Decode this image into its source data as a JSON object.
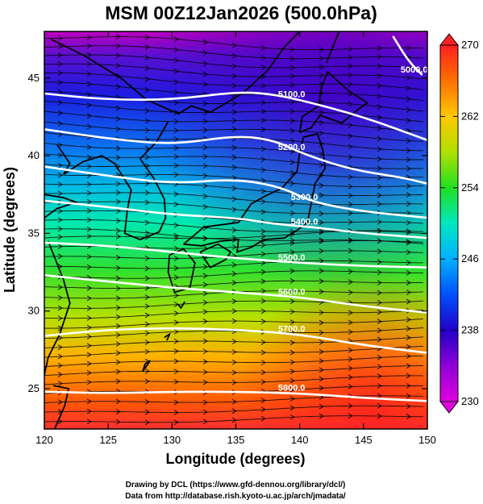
{
  "title": "MSM 00Z12Jan2026 (500.0hPa)",
  "credits": {
    "line1": "Drawing by DCL (https://www.gfd-dennou.org/library/dcl/)",
    "line2": "Data from http://database.rish.kyoto-u.ac.jp/arch/jmadata/"
  },
  "chart_data": {
    "type": "heatmap",
    "title": "MSM 00Z12Jan2026 (500.0hPa)",
    "xlabel": "Longitude (degrees)",
    "ylabel": "Latitude  (degrees)",
    "xlim": [
      120,
      150
    ],
    "ylim": [
      22.4,
      48
    ],
    "x_ticks": [
      120,
      125,
      130,
      135,
      140,
      145,
      150
    ],
    "y_ticks": [
      25,
      30,
      35,
      40,
      45
    ],
    "colorbar": {
      "min": 230,
      "max": 270,
      "ticks": [
        230,
        238,
        246,
        254,
        262,
        270
      ]
    },
    "contours": [
      {
        "label": "5000.0",
        "points": [
          [
            147.3,
            47.7
          ],
          [
            148.5,
            46.1
          ],
          [
            149.6,
            45.2
          ]
        ]
      },
      {
        "label": "5100.0",
        "points": [
          [
            120,
            44.0
          ],
          [
            125,
            43.6
          ],
          [
            130,
            43.6
          ],
          [
            135,
            44.1
          ],
          [
            137.5,
            44.0
          ],
          [
            140,
            43.6
          ],
          [
            145,
            42.5
          ],
          [
            150,
            41.0
          ]
        ]
      },
      {
        "label": "5200.0",
        "points": [
          [
            120,
            41.7
          ],
          [
            125,
            41.1
          ],
          [
            130,
            40.7
          ],
          [
            135,
            41.3
          ],
          [
            138,
            41.0
          ],
          [
            140,
            40.2
          ],
          [
            144,
            39.1
          ],
          [
            148,
            38.6
          ],
          [
            150,
            38.2
          ]
        ]
      },
      {
        "label": "5300.0",
        "points": [
          [
            120,
            39.3
          ],
          [
            125,
            38.7
          ],
          [
            130,
            38.2
          ],
          [
            135,
            38.5
          ],
          [
            138.5,
            38.0
          ],
          [
            141,
            37.0
          ],
          [
            145,
            36.4
          ],
          [
            150,
            36.0
          ]
        ]
      },
      {
        "label": "5400.0",
        "points": [
          [
            120,
            37.1
          ],
          [
            125,
            36.7
          ],
          [
            130,
            36.2
          ],
          [
            135,
            36.0
          ],
          [
            138,
            35.6
          ],
          [
            141,
            35.4
          ],
          [
            145,
            35.0
          ],
          [
            150,
            34.7
          ]
        ]
      },
      {
        "label": "5500.0",
        "points": [
          [
            120,
            34.4
          ],
          [
            125,
            34.2
          ],
          [
            130,
            33.8
          ],
          [
            135,
            33.4
          ],
          [
            140,
            33.1
          ],
          [
            145,
            32.9
          ],
          [
            150,
            32.8
          ]
        ]
      },
      {
        "label": "5600.0",
        "points": [
          [
            120,
            32.3
          ],
          [
            125,
            31.9
          ],
          [
            130,
            31.5
          ],
          [
            135,
            31.2
          ],
          [
            140,
            30.9
          ],
          [
            145,
            30.3
          ],
          [
            150,
            29.9
          ]
        ]
      },
      {
        "label": "5700.0",
        "points": [
          [
            120,
            28.4
          ],
          [
            125,
            28.8
          ],
          [
            130,
            28.9
          ],
          [
            135,
            28.8
          ],
          [
            140,
            28.5
          ],
          [
            145,
            27.8
          ],
          [
            150,
            27.3
          ]
        ]
      },
      {
        "label": "5800.0",
        "points": [
          [
            120,
            24.8
          ],
          [
            125,
            24.7
          ],
          [
            130,
            24.8
          ],
          [
            135,
            24.8
          ],
          [
            140,
            24.7
          ],
          [
            145,
            24.4
          ],
          [
            150,
            24.2
          ]
        ]
      }
    ],
    "field_legend": "temperature colour shading 230–270 with wind streamlines"
  }
}
